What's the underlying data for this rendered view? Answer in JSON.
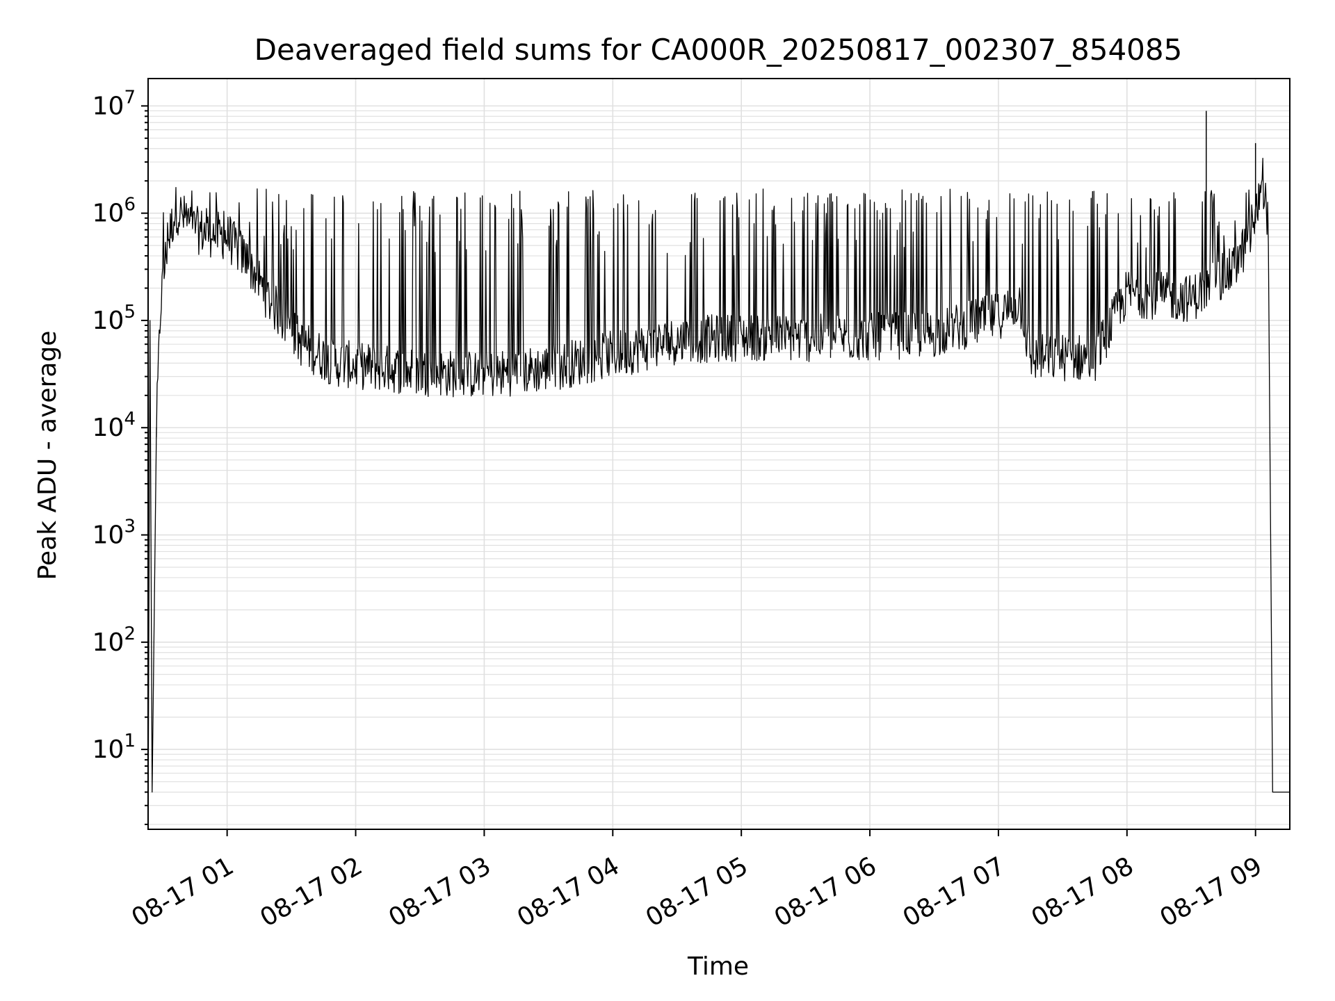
{
  "chart_data": {
    "type": "line",
    "title": "Deaveraged field sums for CA000R_20250817_002307_854085",
    "xlabel": "Time",
    "ylabel": "Peak ADU - average",
    "yscale": "log",
    "ylim": [
      1.8,
      18000000
    ],
    "xlim": [
      "2025-08-17 00:23:07",
      "2025-08-17 09:16:00"
    ],
    "grid": true,
    "line_color": "#000000",
    "grid_color": "#e0e0e0",
    "x_ticks": [
      "08-17 01",
      "08-17 02",
      "08-17 03",
      "08-17 04",
      "08-17 05",
      "08-17 06",
      "08-17 07",
      "08-17 08",
      "08-17 09"
    ],
    "y_ticks": [
      {
        "base": "10",
        "exp": "1"
      },
      {
        "base": "10",
        "exp": "2"
      },
      {
        "base": "10",
        "exp": "3"
      },
      {
        "base": "10",
        "exp": "4"
      },
      {
        "base": "10",
        "exp": "5"
      },
      {
        "base": "10",
        "exp": "6"
      },
      {
        "base": "10",
        "exp": "7"
      }
    ],
    "series": [
      {
        "baseline": [
          [
            "2025-08-17 00:23:07",
            1.8
          ],
          [
            "2025-08-17 00:24:00",
            100000
          ],
          [
            "2025-08-17 00:25:00",
            4
          ],
          [
            "2025-08-17 00:27:00",
            10000
          ],
          [
            "2025-08-17 00:29:00",
            150000
          ],
          [
            "2025-08-17 00:32:00",
            500000
          ],
          [
            "2025-08-17 00:36:00",
            1100000
          ],
          [
            "2025-08-17 00:45:00",
            700000
          ],
          [
            "2025-08-17 01:00:00",
            600000
          ],
          [
            "2025-08-17 01:10:00",
            350000
          ],
          [
            "2025-08-17 01:20:00",
            150000
          ],
          [
            "2025-08-17 01:35:00",
            60000
          ],
          [
            "2025-08-17 01:50:00",
            40000
          ],
          [
            "2025-08-17 02:30:00",
            33000
          ],
          [
            "2025-08-17 03:00:00",
            31000
          ],
          [
            "2025-08-17 03:30:00",
            36000
          ],
          [
            "2025-08-17 04:00:00",
            48000
          ],
          [
            "2025-08-17 04:30:00",
            65000
          ],
          [
            "2025-08-17 05:00:00",
            70000
          ],
          [
            "2025-08-17 05:30:00",
            68000
          ],
          [
            "2025-08-17 06:00:00",
            70000
          ],
          [
            "2025-08-17 06:30:00",
            75000
          ],
          [
            "2025-08-17 07:00:00",
            110000
          ],
          [
            "2025-08-17 07:10:00",
            150000
          ],
          [
            "2025-08-17 07:15:00",
            45000
          ],
          [
            "2025-08-17 07:45:00",
            45000
          ],
          [
            "2025-08-17 08:00:00",
            180000
          ],
          [
            "2025-08-17 08:30:00",
            160000
          ],
          [
            "2025-08-17 08:50:00",
            300000
          ],
          [
            "2025-08-17 09:00:00",
            800000
          ],
          [
            "2025-08-17 09:03:00",
            2400000
          ],
          [
            "2025-08-17 09:06:00",
            800000
          ],
          [
            "2025-08-17 09:08:00",
            4
          ],
          [
            "2025-08-17 09:16:00",
            4
          ]
        ],
        "spikes": [
          [
            "2025-08-17 08:37:00",
            9000000
          ],
          [
            "2025-08-17 09:00:00",
            4500000
          ]
        ]
      }
    ]
  }
}
